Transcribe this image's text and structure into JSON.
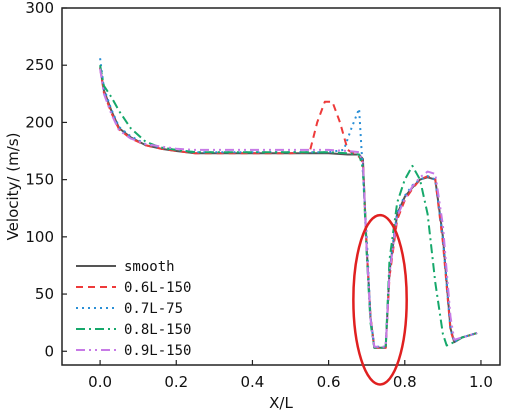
{
  "chart_data": {
    "type": "line",
    "title": "",
    "xlabel": "X/L",
    "ylabel": "Velocity/ (m/s)",
    "xlim": [
      -0.1,
      1.05
    ],
    "ylim": [
      -12,
      300
    ],
    "xticks": [
      0.0,
      0.2,
      0.4,
      0.6,
      0.8,
      1.0
    ],
    "xtick_labels": [
      "0.0",
      "0.2",
      "0.4",
      "0.6",
      "0.8",
      "1.0"
    ],
    "yticks": [
      0,
      50,
      100,
      150,
      200,
      250,
      300
    ],
    "ytick_labels": [
      "0",
      "50",
      "100",
      "150",
      "200",
      "250",
      "300"
    ],
    "grid": false,
    "legend_position": "bottom-left",
    "series": [
      {
        "name": "smooth",
        "color": "#555555",
        "dash": "solid",
        "x": [
          0.0,
          0.01,
          0.03,
          0.05,
          0.08,
          0.12,
          0.16,
          0.2,
          0.25,
          0.3,
          0.4,
          0.5,
          0.6,
          0.65,
          0.68,
          0.69,
          0.7,
          0.71,
          0.72,
          0.73,
          0.75,
          0.76,
          0.78,
          0.8,
          0.82,
          0.84,
          0.86,
          0.88,
          0.9,
          0.92,
          0.93,
          0.95,
          0.97,
          0.99
        ],
        "y": [
          248,
          228,
          210,
          195,
          187,
          180,
          177,
          175,
          173,
          173,
          173,
          173,
          173,
          172,
          172,
          168,
          90,
          30,
          3,
          3,
          3,
          70,
          120,
          135,
          143,
          150,
          152,
          150,
          100,
          20,
          8,
          12,
          14,
          16
        ]
      },
      {
        "name": "0.6L-150",
        "color": "#ee3a3a",
        "dash": "7,5",
        "x": [
          0.0,
          0.01,
          0.03,
          0.05,
          0.08,
          0.12,
          0.16,
          0.2,
          0.25,
          0.3,
          0.4,
          0.5,
          0.55,
          0.57,
          0.59,
          0.61,
          0.63,
          0.65,
          0.68,
          0.69,
          0.7,
          0.71,
          0.72,
          0.73,
          0.75,
          0.76,
          0.78,
          0.8,
          0.82,
          0.84,
          0.86,
          0.88,
          0.9,
          0.92,
          0.93,
          0.95,
          0.97,
          0.99
        ],
        "y": [
          248,
          226,
          208,
          194,
          186,
          180,
          177,
          175,
          173,
          173,
          173,
          173,
          174,
          200,
          218,
          218,
          200,
          176,
          170,
          165,
          90,
          30,
          3,
          3,
          3,
          65,
          115,
          132,
          142,
          150,
          153,
          150,
          95,
          18,
          8,
          12,
          14,
          16
        ]
      },
      {
        "name": "0.7L-75",
        "color": "#2a8fd6",
        "dash": "2,4",
        "x": [
          0.0,
          0.01,
          0.03,
          0.05,
          0.08,
          0.12,
          0.16,
          0.2,
          0.25,
          0.3,
          0.4,
          0.5,
          0.6,
          0.64,
          0.66,
          0.68,
          0.7,
          0.71,
          0.72,
          0.73,
          0.75,
          0.76,
          0.78,
          0.8,
          0.82,
          0.84,
          0.86,
          0.88,
          0.9,
          0.92,
          0.93,
          0.95,
          0.97,
          0.99
        ],
        "y": [
          256,
          230,
          211,
          196,
          188,
          181,
          178,
          176,
          174,
          174,
          174,
          174,
          174,
          176,
          195,
          212,
          100,
          30,
          4,
          4,
          4,
          72,
          122,
          136,
          145,
          150,
          153,
          150,
          98,
          20,
          8,
          12,
          14,
          16
        ]
      },
      {
        "name": "0.8L-150",
        "color": "#16a86b",
        "dash": "9,4,2,4",
        "x": [
          0.0,
          0.01,
          0.03,
          0.05,
          0.08,
          0.12,
          0.16,
          0.2,
          0.25,
          0.3,
          0.4,
          0.5,
          0.6,
          0.65,
          0.68,
          0.69,
          0.7,
          0.71,
          0.72,
          0.73,
          0.75,
          0.76,
          0.78,
          0.8,
          0.82,
          0.84,
          0.86,
          0.88,
          0.9,
          0.91,
          0.93,
          0.95,
          0.97,
          0.99
        ],
        "y": [
          250,
          232,
          222,
          210,
          195,
          183,
          178,
          176,
          174,
          174,
          174,
          174,
          174,
          173,
          172,
          160,
          85,
          25,
          3,
          3,
          3,
          80,
          130,
          150,
          162,
          150,
          120,
          60,
          15,
          5,
          8,
          12,
          14,
          16
        ]
      },
      {
        "name": "0.9L-150",
        "color": "#c77ae6",
        "dash": "9,4,2,4,2,4",
        "x": [
          0.0,
          0.01,
          0.03,
          0.05,
          0.08,
          0.12,
          0.16,
          0.2,
          0.25,
          0.3,
          0.4,
          0.5,
          0.6,
          0.65,
          0.68,
          0.69,
          0.7,
          0.71,
          0.72,
          0.73,
          0.75,
          0.76,
          0.78,
          0.8,
          0.82,
          0.84,
          0.86,
          0.88,
          0.9,
          0.92,
          0.93,
          0.95,
          0.97,
          0.99
        ],
        "y": [
          247,
          225,
          207,
          193,
          186,
          181,
          179,
          177,
          176,
          176,
          176,
          176,
          176,
          175,
          174,
          165,
          88,
          28,
          4,
          4,
          4,
          68,
          118,
          133,
          144,
          152,
          157,
          155,
          110,
          30,
          10,
          12,
          14,
          16
        ]
      }
    ],
    "annotations": [
      {
        "type": "ellipse",
        "color": "#e02020",
        "center_x": 0.735,
        "center_y": 45,
        "radius_x": 0.07,
        "radius_y": 74
      }
    ]
  }
}
